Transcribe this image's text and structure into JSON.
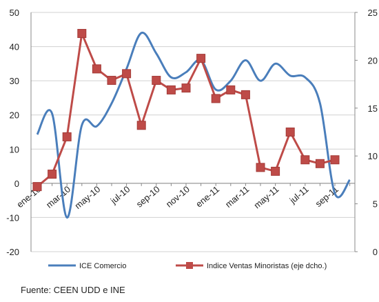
{
  "chart_data": {
    "type": "line",
    "categories": [
      "ene-10",
      null,
      "mar-10",
      null,
      "may-10",
      null,
      "jul-10",
      null,
      "sep-10",
      null,
      "nov-10",
      null,
      "ene-11",
      null,
      "mar-11",
      null,
      "may-11",
      null,
      "jul-11",
      null,
      "sep-11",
      null
    ],
    "series": [
      {
        "name": "ICE Comercio",
        "color": "#4a7ebb",
        "smooth": true,
        "values": [
          14.3,
          20.4,
          -10,
          17,
          16.7,
          23.4,
          33.5,
          44,
          38,
          31,
          32.5,
          36,
          27.4,
          30,
          36,
          30,
          35,
          31.5,
          31,
          23.4,
          -3,
          1
        ]
      },
      {
        "name": "Indice Ventas Minoristas (eje dcho.)",
        "color": "#be4b48",
        "axis": "y2",
        "marker": "square",
        "values": [
          6.8,
          8.1,
          12.0,
          22.8,
          19.1,
          17.9,
          18.6,
          13.2,
          17.9,
          16.9,
          17.1,
          20.2,
          16.0,
          16.9,
          16.4,
          8.8,
          8.4,
          12.5,
          9.6,
          9.2,
          9.6,
          null
        ]
      }
    ],
    "ylim": [
      -20,
      50
    ],
    "yticks": [
      -20,
      -10,
      0,
      10,
      20,
      30,
      40,
      50
    ],
    "y2lim": [
      0,
      25
    ],
    "y2ticks": [
      0,
      5,
      10,
      15,
      20,
      25
    ],
    "grid": true,
    "legend": "bottom",
    "source": "Fuente: CEEN UDD e INE"
  }
}
